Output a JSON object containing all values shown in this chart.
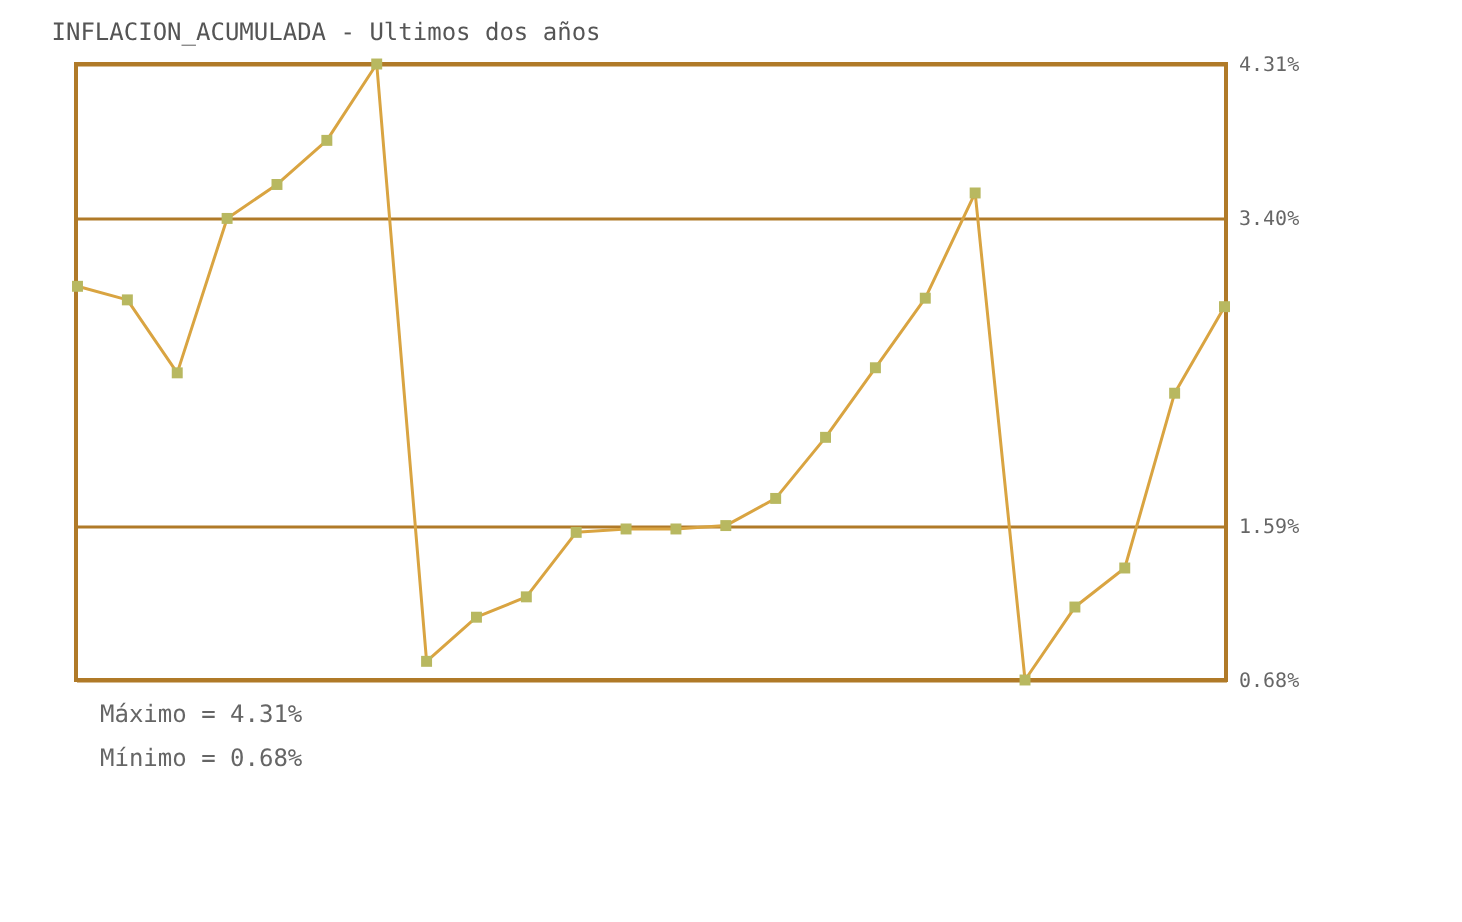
{
  "chart_data": {
    "type": "line",
    "title": "INFLACION_ACUMULADA - Ultimos dos años",
    "categories": [
      null,
      null,
      null,
      null,
      null,
      null,
      null,
      null,
      null,
      null,
      null,
      null,
      null,
      null,
      null,
      null,
      null,
      null,
      null,
      null,
      null,
      null,
      null,
      null
    ],
    "series": [
      {
        "color": "#d9a441",
        "values": [
          3.0,
          2.92,
          2.49,
          3.4,
          3.6,
          3.86,
          4.31,
          0.79,
          1.05,
          1.17,
          1.55,
          1.57,
          1.57,
          1.59,
          1.75,
          2.11,
          2.52,
          2.93,
          3.55,
          0.68,
          1.11,
          1.34,
          2.37,
          2.88
        ]
      }
    ],
    "ylim": [
      0.68,
      4.31
    ],
    "yticks": [
      {
        "value": 0.68,
        "label": "0.68%"
      },
      {
        "value": 1.59,
        "label": "1.59%"
      },
      {
        "value": 3.4,
        "label": "3.40%"
      },
      {
        "value": 4.31,
        "label": "4.31%"
      }
    ],
    "grid": "y",
    "marker": "square",
    "line_style": "solid",
    "annotations": [
      "Máximo = 4.31%",
      "Mínimo = 0.68%"
    ]
  }
}
